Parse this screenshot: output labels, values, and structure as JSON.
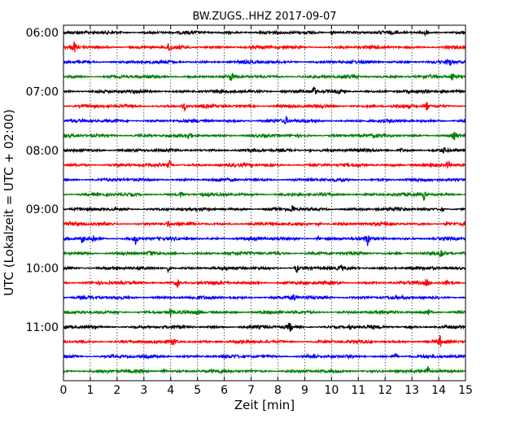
{
  "chart_data": {
    "type": "line",
    "title": "BW.ZUGS..HHZ 2017-09-07",
    "xlabel": "Zeit  [min]",
    "ylabel": "UTC (Lokalzeit = UTC + 02:00)",
    "xlim": [
      0,
      15
    ],
    "x_ticks": [
      "0",
      "1",
      "2",
      "3",
      "4",
      "5",
      "6",
      "7",
      "8",
      "9",
      "10",
      "11",
      "12",
      "13",
      "14",
      "15"
    ],
    "vertical_grid": "dotted",
    "rows_per_hour": 4,
    "row_minutes": 15,
    "time_range": [
      "06:00",
      "12:00"
    ],
    "hour_labels": [
      {
        "label": "06:00",
        "row": 0
      },
      {
        "label": "07:00",
        "row": 4
      },
      {
        "label": "08:00",
        "row": 8
      },
      {
        "label": "09:00",
        "row": 12
      },
      {
        "label": "10:00",
        "row": 16
      },
      {
        "label": "11:00",
        "row": 20
      }
    ],
    "color_cycle": [
      "#000000",
      "#ff0000",
      "#0000ff",
      "#008000"
    ],
    "traces": [
      {
        "start": "06:00",
        "events": [
          {
            "t": 13.5,
            "a": 0.8
          },
          {
            "t": 10.0,
            "a": 0.4
          }
        ]
      },
      {
        "start": "06:15",
        "events": [
          {
            "t": 0.4,
            "a": 1.0
          },
          {
            "t": 3.95,
            "a": 1.0
          }
        ]
      },
      {
        "start": "06:30",
        "events": [
          {
            "t": 14.4,
            "a": 0.8
          }
        ]
      },
      {
        "start": "06:45",
        "events": [
          {
            "t": 6.25,
            "a": 0.9
          },
          {
            "t": 14.5,
            "a": 0.7
          }
        ]
      },
      {
        "start": "07:00",
        "events": [
          {
            "t": 9.35,
            "a": 1.0
          },
          {
            "t": 8.25,
            "a": 0.4
          },
          {
            "t": 10.3,
            "a": 0.4
          }
        ]
      },
      {
        "start": "07:15",
        "events": [
          {
            "t": 4.5,
            "a": 0.9
          },
          {
            "t": 13.55,
            "a": 0.9
          }
        ]
      },
      {
        "start": "07:30",
        "events": [
          {
            "t": 8.3,
            "a": 0.8
          }
        ]
      },
      {
        "start": "07:45",
        "events": [
          {
            "t": 4.7,
            "a": 0.8
          },
          {
            "t": 14.6,
            "a": 0.8
          }
        ]
      },
      {
        "start": "08:00",
        "events": [
          {
            "t": 9.2,
            "a": 0.3
          },
          {
            "t": 12.6,
            "a": 0.3
          },
          {
            "t": 14.2,
            "a": 0.4
          }
        ]
      },
      {
        "start": "08:15",
        "events": [
          {
            "t": 3.95,
            "a": 0.7
          },
          {
            "t": 14.35,
            "a": 0.9
          }
        ]
      },
      {
        "start": "08:30",
        "events": []
      },
      {
        "start": "08:45",
        "events": [
          {
            "t": 4.4,
            "a": 0.8
          },
          {
            "t": 13.45,
            "a": 0.9
          }
        ]
      },
      {
        "start": "09:00",
        "events": [
          {
            "t": 8.55,
            "a": 0.8
          },
          {
            "t": 14.1,
            "a": 0.4
          }
        ]
      },
      {
        "start": "09:15",
        "events": [
          {
            "t": 3.9,
            "a": 0.6
          },
          {
            "t": 9.55,
            "a": 0.4
          },
          {
            "t": 14.3,
            "a": 0.4
          }
        ]
      },
      {
        "start": "09:30",
        "events": [
          {
            "t": 0.7,
            "a": 0.8
          },
          {
            "t": 1.1,
            "a": 0.8
          },
          {
            "t": 2.7,
            "a": 0.9
          },
          {
            "t": 9.5,
            "a": 0.4
          },
          {
            "t": 11.35,
            "a": 1.0
          }
        ]
      },
      {
        "start": "09:45",
        "events": [
          {
            "t": 3.25,
            "a": 0.6
          },
          {
            "t": 14.1,
            "a": 0.8
          }
        ]
      },
      {
        "start": "10:00",
        "events": [
          {
            "t": 3.9,
            "a": 0.5
          },
          {
            "t": 8.7,
            "a": 0.7
          },
          {
            "t": 10.35,
            "a": 0.4
          }
        ]
      },
      {
        "start": "10:15",
        "events": [
          {
            "t": 4.25,
            "a": 0.8
          },
          {
            "t": 13.55,
            "a": 0.8
          },
          {
            "t": 14.3,
            "a": 0.5
          }
        ]
      },
      {
        "start": "10:30",
        "events": [
          {
            "t": 8.6,
            "a": 0.8
          }
        ]
      },
      {
        "start": "10:45",
        "events": [
          {
            "t": 4.0,
            "a": 0.8
          },
          {
            "t": 5.0,
            "a": 0.4
          },
          {
            "t": 13.6,
            "a": 0.8
          }
        ]
      },
      {
        "start": "11:00",
        "events": [
          {
            "t": 8.45,
            "a": 1.0
          },
          {
            "t": 10.7,
            "a": 0.4
          }
        ]
      },
      {
        "start": "11:15",
        "events": [
          {
            "t": 4.1,
            "a": 0.8
          },
          {
            "t": 14.05,
            "a": 0.9
          }
        ]
      },
      {
        "start": "11:30",
        "events": [
          {
            "t": 9.35,
            "a": 0.7
          },
          {
            "t": 12.4,
            "a": 0.4
          }
        ]
      },
      {
        "start": "11:45",
        "events": [
          {
            "t": 3.75,
            "a": 0.4
          },
          {
            "t": 13.6,
            "a": 0.8
          }
        ]
      }
    ]
  }
}
